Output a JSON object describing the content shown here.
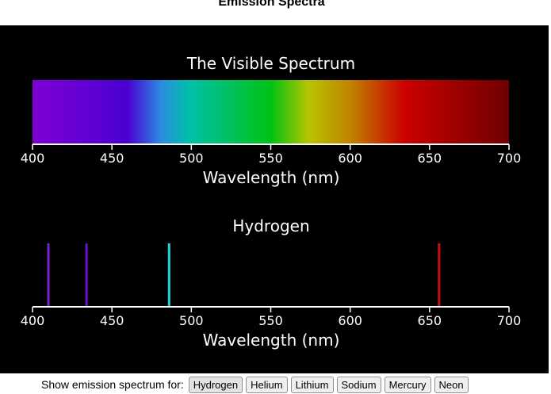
{
  "page_title": "Emission Spectra",
  "spectrum_panel": {
    "title": "The Visible Spectrum",
    "xlabel": "Wavelength (nm)",
    "ticks": [
      "400",
      "450",
      "500",
      "550",
      "600",
      "650",
      "700"
    ],
    "range_nm": [
      400,
      700
    ]
  },
  "emission_panel": {
    "title": "Hydrogen",
    "xlabel": "Wavelength (nm)",
    "ticks": [
      "400",
      "450",
      "500",
      "550",
      "600",
      "650",
      "700"
    ],
    "range_nm": [
      400,
      700
    ]
  },
  "chart_data": {
    "type": "scatter",
    "title": "Hydrogen",
    "xlabel": "Wavelength (nm)",
    "xlim": [
      400,
      700
    ],
    "grid": false,
    "lines": [
      {
        "wavelength": 410,
        "color": "#7a1fd6"
      },
      {
        "wavelength": 434,
        "color": "#6a12cc"
      },
      {
        "wavelength": 486,
        "color": "#22d3dc"
      },
      {
        "wavelength": 656,
        "color": "#cc1010"
      }
    ]
  },
  "controls": {
    "label": "Show emission spectrum for:",
    "buttons": [
      "Hydrogen",
      "Helium",
      "Lithium",
      "Sodium",
      "Mercury",
      "Neon"
    ],
    "selected": "Hydrogen"
  }
}
